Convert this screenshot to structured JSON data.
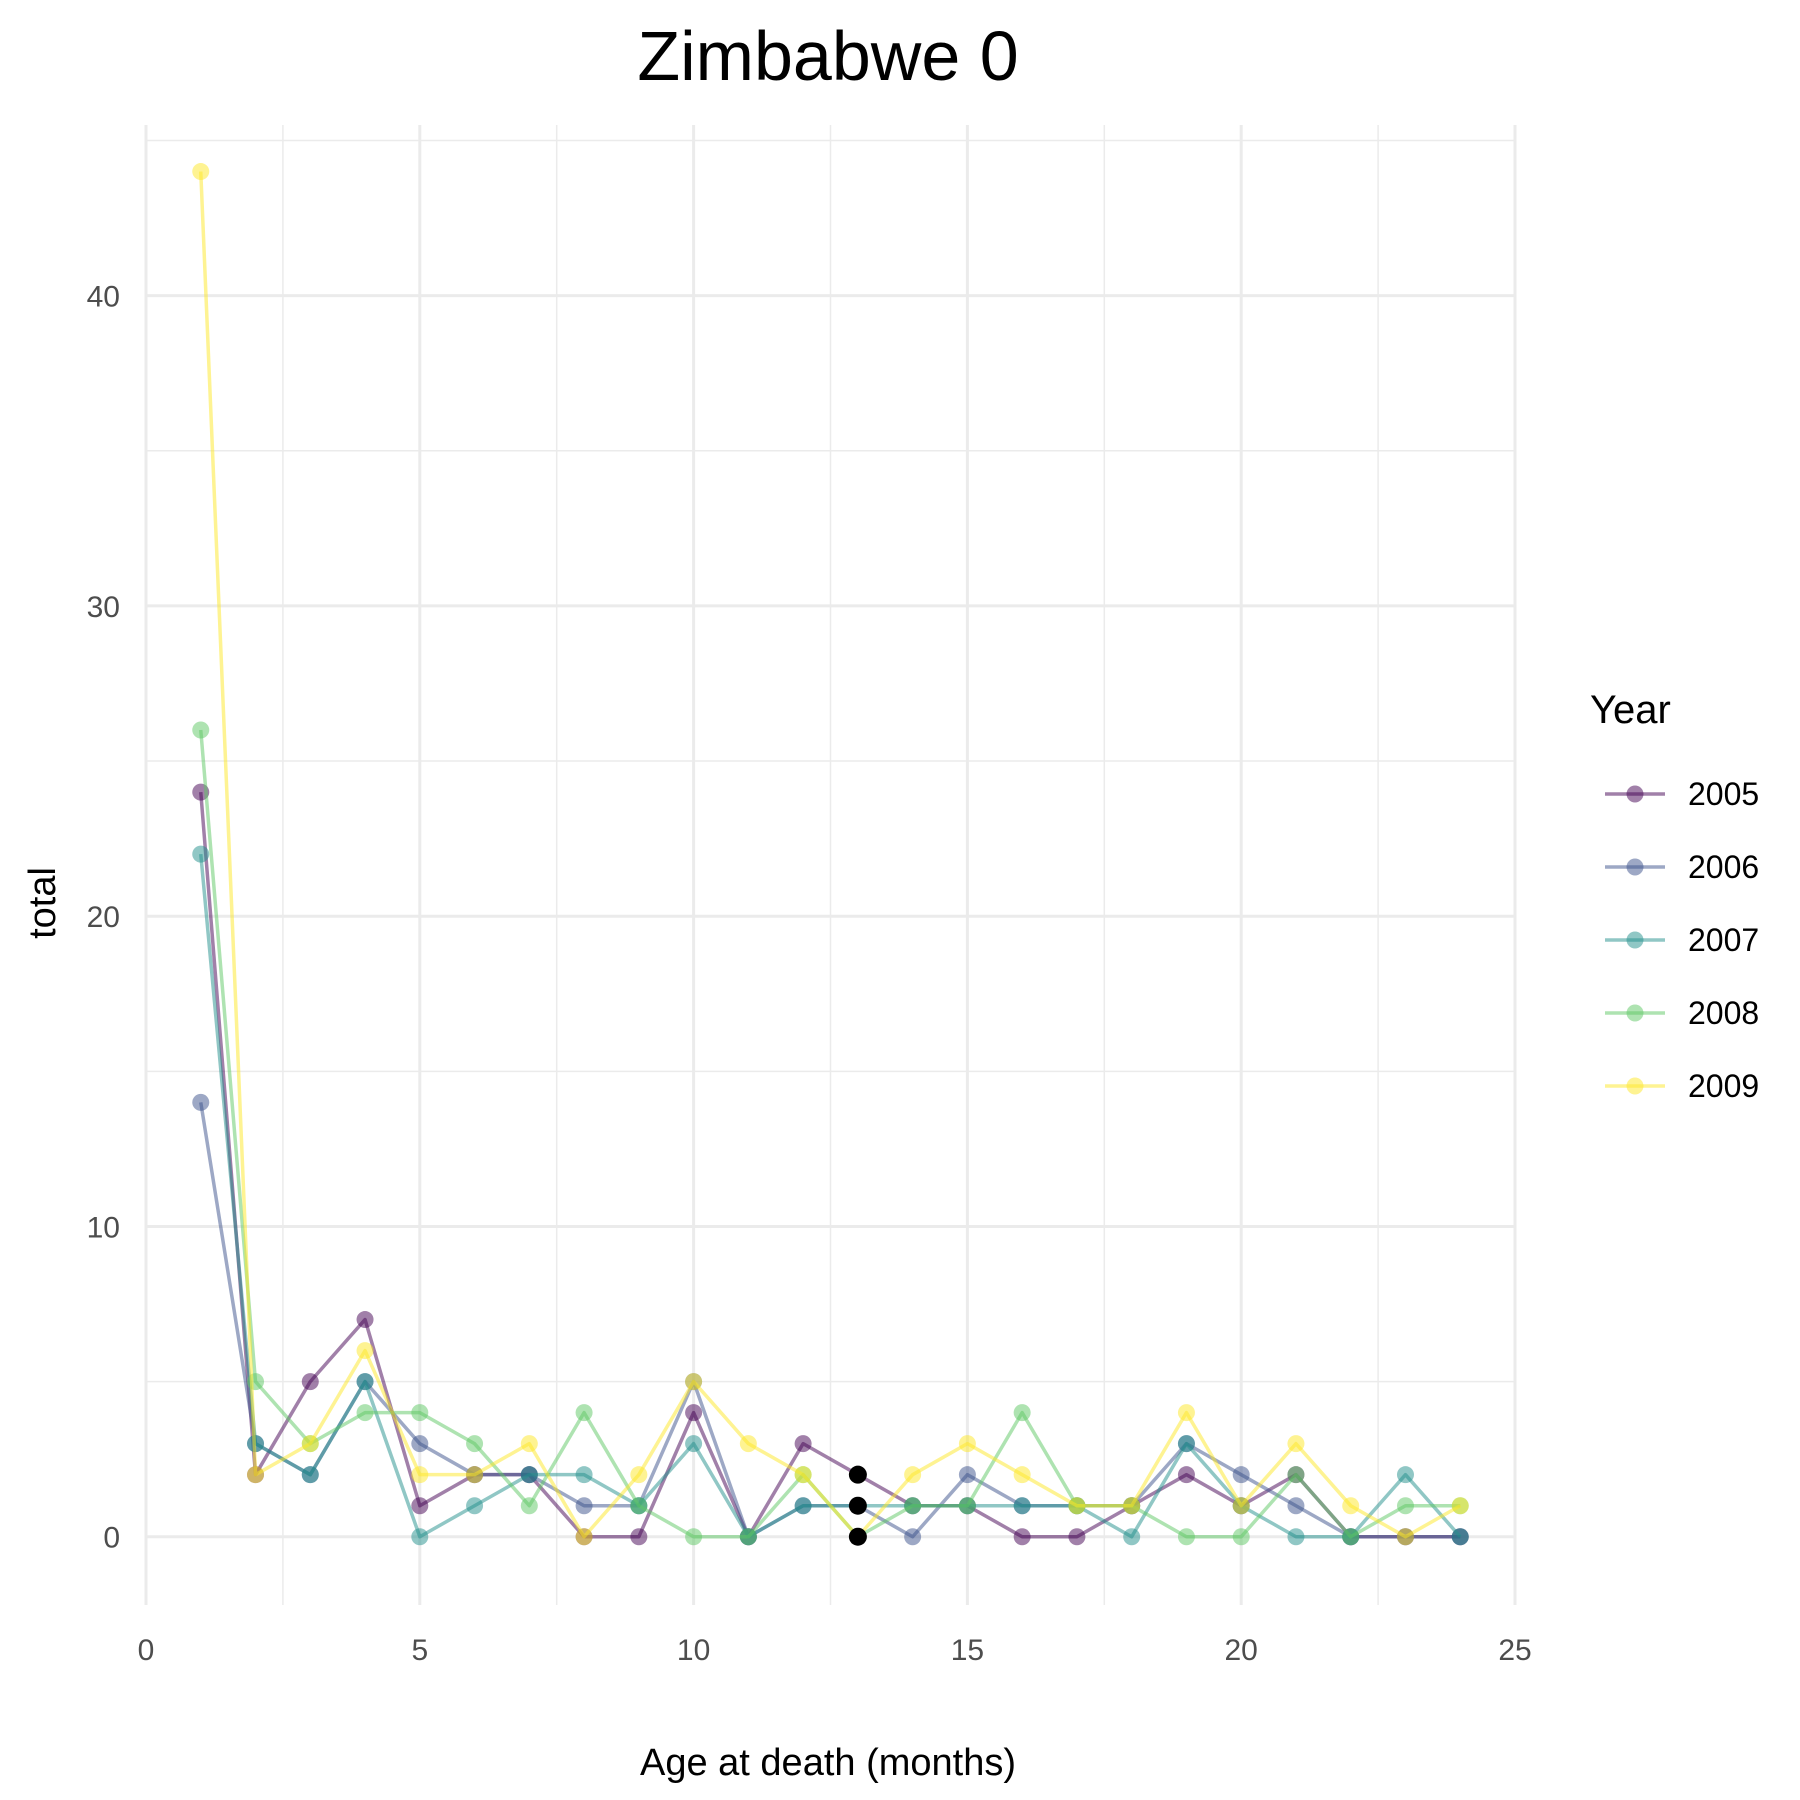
{
  "chart_data": {
    "type": "line",
    "title": "Zimbabwe 0",
    "xlabel": "Age at death (months)",
    "ylabel": "total",
    "xlim": [
      0,
      25
    ],
    "ylim": [
      -2.2,
      45.5
    ],
    "xticks": [
      0,
      5,
      10,
      15,
      20,
      25
    ],
    "yticks": [
      0,
      10,
      20,
      30,
      40
    ],
    "grid": true,
    "legend_title": "Year",
    "legend_position": "right",
    "x": [
      1,
      2,
      3,
      4,
      5,
      6,
      7,
      8,
      9,
      10,
      11,
      12,
      13,
      14,
      15,
      16,
      17,
      18,
      19,
      20,
      21,
      22,
      23,
      24
    ],
    "series": [
      {
        "name": "2005",
        "color": "#440154",
        "values": [
          24,
          2,
          5,
          7,
          1,
          2,
          2,
          0,
          0,
          4,
          0,
          3,
          2,
          1,
          1,
          0,
          0,
          1,
          2,
          1,
          2,
          0,
          0,
          0
        ]
      },
      {
        "name": "2006",
        "color": "#3B528B",
        "values": [
          14,
          3,
          2,
          5,
          3,
          2,
          2,
          1,
          1,
          5,
          0,
          1,
          1,
          0,
          2,
          1,
          1,
          1,
          3,
          2,
          1,
          0,
          0,
          0
        ]
      },
      {
        "name": "2007",
        "color": "#21908C",
        "values": [
          22,
          3,
          2,
          5,
          0,
          1,
          2,
          2,
          1,
          3,
          0,
          1,
          1,
          1,
          1,
          1,
          1,
          0,
          3,
          1,
          0,
          0,
          2,
          0
        ]
      },
      {
        "name": "2008",
        "color": "#5DC863",
        "values": [
          26,
          5,
          3,
          4,
          4,
          3,
          1,
          4,
          1,
          0,
          0,
          2,
          0,
          1,
          1,
          4,
          1,
          1,
          0,
          0,
          2,
          0,
          1,
          1
        ]
      },
      {
        "name": "2009",
        "color": "#FDE725",
        "values": [
          44,
          2,
          3,
          6,
          2,
          2,
          3,
          0,
          2,
          5,
          3,
          2,
          0,
          2,
          3,
          2,
          1,
          1,
          4,
          1,
          3,
          1,
          0,
          1
        ]
      }
    ],
    "highlight_points": [
      {
        "x": 13,
        "y": 2,
        "color": "#000000"
      },
      {
        "x": 13,
        "y": 1,
        "color": "#000000"
      },
      {
        "x": 13,
        "y": 0,
        "color": "#000000"
      }
    ]
  }
}
